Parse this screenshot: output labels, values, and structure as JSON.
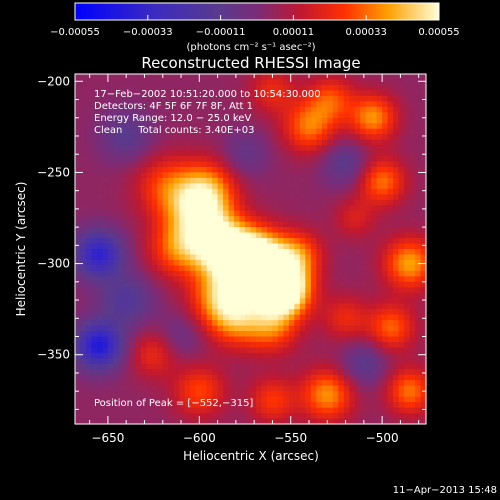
{
  "chart_data": {
    "type": "heatmap",
    "title": "Reconstructed RHESSI Image",
    "xlabel": "Heliocentric X (arcsec)",
    "ylabel": "Heliocentric Y (arcsec)",
    "xlim": [
      -668,
      -476
    ],
    "ylim": [
      -388,
      -196
    ],
    "x_ticks": [
      {
        "value": -650,
        "label": "−650"
      },
      {
        "value": -600,
        "label": "−600"
      },
      {
        "value": -550,
        "label": "−550"
      },
      {
        "value": -500,
        "label": "−500"
      }
    ],
    "y_ticks": [
      {
        "value": -200,
        "label": "−200"
      },
      {
        "value": -250,
        "label": "−250"
      },
      {
        "value": -300,
        "label": "−300"
      },
      {
        "value": -350,
        "label": "−350"
      }
    ],
    "colorbar": {
      "range": [
        -0.00055,
        0.00055
      ],
      "ticks": [
        {
          "value": -0.00055,
          "label": "−0.00055"
        },
        {
          "value": -0.00033,
          "label": "−0.00033"
        },
        {
          "value": -0.00011,
          "label": "−0.00011"
        },
        {
          "value": 0.00011,
          "label": "0.00011"
        },
        {
          "value": 0.00033,
          "label": "0.00033"
        },
        {
          "value": 0.00055,
          "label": "0.00055"
        }
      ],
      "unit_label": "(photons cm⁻² s⁻¹ asec⁻²)"
    },
    "info_lines": [
      "17−Feb−2002 10:51:20.000 to 10:54:30.000",
      "Detectors: 4F 5F 6F 7F 8F, Att 1",
      "Energy Range: 12.0 − 25.0 keV",
      "Clean     Total counts: 3.40E+03"
    ],
    "peak_label": "Position of Peak = [−552,−315]",
    "peak": [
      -552,
      -315
    ],
    "timestamp": "11−Apr−2013 15:48",
    "blobs": [
      {
        "x": -553,
        "y": -315,
        "amp": 0.0006,
        "r": 10
      },
      {
        "x": -565,
        "y": -302,
        "amp": 0.0005,
        "r": 12
      },
      {
        "x": -575,
        "y": -297,
        "amp": 0.00044,
        "r": 12
      },
      {
        "x": -590,
        "y": -290,
        "amp": 0.0004,
        "r": 11
      },
      {
        "x": -600,
        "y": -272,
        "amp": 0.00038,
        "r": 12
      },
      {
        "x": -595,
        "y": -258,
        "amp": 0.00026,
        "r": 11
      },
      {
        "x": -618,
        "y": -258,
        "amp": 0.00024,
        "r": 12
      },
      {
        "x": -612,
        "y": -292,
        "amp": 0.00028,
        "r": 11
      },
      {
        "x": -580,
        "y": -330,
        "amp": 0.00032,
        "r": 11
      },
      {
        "x": -560,
        "y": -335,
        "amp": 0.00026,
        "r": 10
      },
      {
        "x": -590,
        "y": -318,
        "amp": 0.0003,
        "r": 11
      },
      {
        "x": -545,
        "y": -295,
        "amp": 0.00024,
        "r": 9
      },
      {
        "x": -520,
        "y": -330,
        "amp": 0.00018,
        "r": 9
      },
      {
        "x": -540,
        "y": -225,
        "amp": 0.0003,
        "r": 10
      },
      {
        "x": -528,
        "y": -210,
        "amp": 0.00024,
        "r": 9
      },
      {
        "x": -505,
        "y": -220,
        "amp": 0.00034,
        "r": 9
      },
      {
        "x": -500,
        "y": -255,
        "amp": 0.0003,
        "r": 9
      },
      {
        "x": -485,
        "y": -300,
        "amp": 0.00036,
        "r": 10
      },
      {
        "x": -495,
        "y": -335,
        "amp": 0.00028,
        "r": 9
      },
      {
        "x": -485,
        "y": -370,
        "amp": 0.0003,
        "r": 9
      },
      {
        "x": -530,
        "y": -372,
        "amp": 0.00034,
        "r": 10
      },
      {
        "x": -560,
        "y": -375,
        "amp": 0.00022,
        "r": 9
      },
      {
        "x": -600,
        "y": -370,
        "amp": 0.00024,
        "r": 10
      },
      {
        "x": -625,
        "y": -350,
        "amp": 0.00018,
        "r": 9
      },
      {
        "x": -560,
        "y": -205,
        "amp": 0.00018,
        "r": 9
      },
      {
        "x": -515,
        "y": -275,
        "amp": 0.00014,
        "r": 8
      },
      {
        "x": -655,
        "y": -295,
        "amp": -0.0004,
        "r": 9
      },
      {
        "x": -655,
        "y": -345,
        "amp": -0.00045,
        "r": 9
      },
      {
        "x": -640,
        "y": -320,
        "amp": -0.0002,
        "r": 10
      },
      {
        "x": -640,
        "y": -230,
        "amp": -0.00016,
        "r": 10
      },
      {
        "x": -520,
        "y": -245,
        "amp": -0.00016,
        "r": 9
      },
      {
        "x": -510,
        "y": -355,
        "amp": -0.00016,
        "r": 9
      },
      {
        "x": -575,
        "y": -240,
        "amp": -0.00012,
        "r": 9
      },
      {
        "x": -610,
        "y": -340,
        "amp": -0.0001,
        "r": 9
      }
    ]
  }
}
